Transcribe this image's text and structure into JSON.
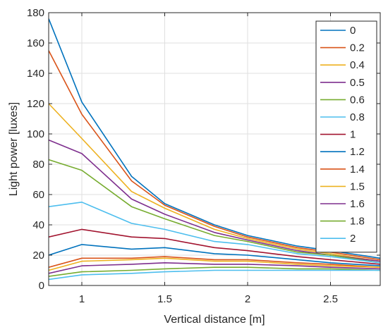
{
  "chart_data": {
    "type": "line",
    "xlabel": "Vertical distance [m]",
    "ylabel": "Light power [luxes]",
    "xlim": [
      0.8,
      2.8
    ],
    "ylim": [
      0,
      180
    ],
    "xticks": [
      1,
      1.5,
      2,
      2.5
    ],
    "xtick_labels": [
      "1",
      "1.5",
      "2",
      "2.5"
    ],
    "yticks": [
      0,
      20,
      40,
      60,
      80,
      100,
      120,
      140,
      160,
      180
    ],
    "ytick_labels": [
      "0",
      "20",
      "40",
      "60",
      "80",
      "100",
      "120",
      "140",
      "160",
      "180"
    ],
    "grid": true,
    "legend_position": "top-right",
    "x": [
      0.8,
      1.0,
      1.3,
      1.5,
      1.8,
      2.0,
      2.3,
      2.5,
      2.8
    ],
    "series": [
      {
        "name": "0",
        "color": "#0072BD",
        "values": [
          176,
          121,
          72,
          54,
          40,
          33,
          26,
          23,
          18
        ]
      },
      {
        "name": "0.2",
        "color": "#D95319",
        "values": [
          155,
          113,
          69,
          53,
          39,
          32,
          25,
          22,
          17
        ]
      },
      {
        "name": "0.4",
        "color": "#EDB120",
        "values": [
          120,
          97,
          62,
          51,
          37,
          31,
          24,
          21,
          16
        ]
      },
      {
        "name": "0.5",
        "color": "#7E2F8E",
        "values": [
          96,
          87,
          57,
          47,
          35,
          30,
          23,
          20,
          16
        ]
      },
      {
        "name": "0.6",
        "color": "#77AC30",
        "values": [
          83,
          76,
          52,
          44,
          33,
          29,
          22,
          20,
          15
        ]
      },
      {
        "name": "0.8",
        "color": "#4DBEEE",
        "values": [
          52,
          55,
          41,
          37,
          29,
          27,
          21,
          19,
          15
        ]
      },
      {
        "name": "1",
        "color": "#A2142F",
        "values": [
          32,
          37,
          32,
          31,
          25,
          23,
          19,
          17,
          14
        ]
      },
      {
        "name": "1.2",
        "color": "#0072BD",
        "values": [
          20,
          27,
          24,
          25,
          21,
          20,
          17,
          15,
          13
        ]
      },
      {
        "name": "1.4",
        "color": "#D95319",
        "values": [
          12,
          18,
          18,
          19,
          17,
          17,
          15,
          14,
          12
        ]
      },
      {
        "name": "1.5",
        "color": "#EDB120",
        "values": [
          10,
          16,
          17,
          18,
          16,
          16,
          14,
          13,
          12
        ]
      },
      {
        "name": "1.6",
        "color": "#7E2F8E",
        "values": [
          8,
          13,
          14,
          15,
          14,
          14,
          13,
          12,
          11
        ]
      },
      {
        "name": "1.8",
        "color": "#77AC30",
        "values": [
          6,
          9,
          10,
          11,
          12,
          12,
          11,
          11,
          10
        ]
      },
      {
        "name": "2",
        "color": "#4DBEEE",
        "values": [
          4,
          7,
          8,
          9,
          10,
          10,
          10,
          10,
          10
        ]
      }
    ]
  }
}
